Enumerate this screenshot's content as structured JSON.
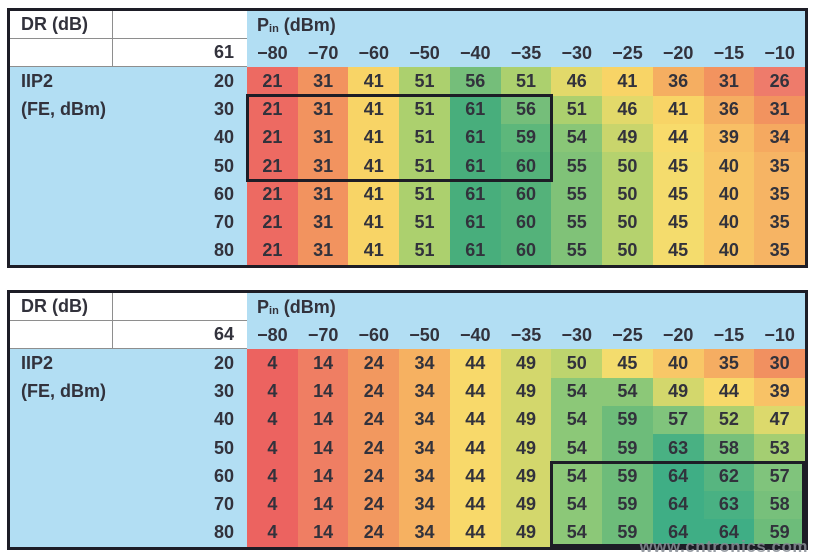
{
  "watermark": "www.cntronics.com",
  "colors": {
    "header_blue": "#B2DEF3",
    "table_border": "#1D1D26",
    "grid_line": "#8E8E8E",
    "text": "#32323C",
    "highlight_border": "#1D1D26",
    "watermark_text": "#878D95",
    "page_background": "#FFFFFF"
  },
  "chart_data": [
    {
      "type": "heatmap",
      "corner_label": "DR (dB)",
      "x_label_main": "P",
      "x_label_sub": "in",
      "x_label_unit": " (dBm)",
      "reference_value": "61",
      "y_label_line1": "IIP2",
      "y_label_line2": "(FE, dBm)",
      "x": [
        -80,
        -70,
        -60,
        -50,
        -40,
        -35,
        -30,
        -25,
        -20,
        -15,
        -10
      ],
      "y": [
        20,
        30,
        40,
        50,
        60,
        70,
        80
      ],
      "values": [
        [
          21,
          31,
          41,
          51,
          56,
          51,
          46,
          41,
          36,
          31,
          26
        ],
        [
          21,
          31,
          41,
          51,
          61,
          56,
          51,
          46,
          41,
          36,
          31
        ],
        [
          21,
          31,
          41,
          51,
          61,
          59,
          54,
          49,
          44,
          39,
          34
        ],
        [
          21,
          31,
          41,
          51,
          61,
          60,
          55,
          50,
          45,
          40,
          35
        ],
        [
          21,
          31,
          41,
          51,
          61,
          60,
          55,
          50,
          45,
          40,
          35
        ],
        [
          21,
          31,
          41,
          51,
          61,
          60,
          55,
          50,
          45,
          40,
          35
        ],
        [
          21,
          31,
          41,
          51,
          61,
          60,
          55,
          50,
          45,
          40,
          35
        ]
      ],
      "value_colors": {
        "21": "#ED6A62",
        "26": "#EE7B6B",
        "31": "#F2935F",
        "34": "#F5A960",
        "35": "#F6B464",
        "36": "#F5AE61",
        "39": "#F8BF65",
        "40": "#F8C566",
        "41": "#F8D466",
        "44": "#F8DB6B",
        "45": "#F4DC6D",
        "46": "#E2D96A",
        "49": "#C9D56C",
        "50": "#B5D26E",
        "51": "#ACD06E",
        "54": "#89C677",
        "55": "#80C278",
        "56": "#75BE7A",
        "59": "#5DB77B",
        "60": "#54B27A",
        "61": "#48AE7C"
      },
      "highlight_box": {
        "row_start": 1,
        "row_end": 3,
        "col_start": 0,
        "col_end": 5
      }
    },
    {
      "type": "heatmap",
      "corner_label": "DR (dB)",
      "x_label_main": "P",
      "x_label_sub": "in",
      "x_label_unit": " (dBm)",
      "reference_value": "64",
      "y_label_line1": "IIP2",
      "y_label_line2": "(FE, dBm)",
      "x": [
        -80,
        -70,
        -60,
        -50,
        -40,
        -35,
        -30,
        -25,
        -20,
        -15,
        -10
      ],
      "y": [
        20,
        30,
        40,
        50,
        60,
        70,
        80
      ],
      "values": [
        [
          4,
          14,
          24,
          34,
          44,
          49,
          50,
          45,
          40,
          35,
          30
        ],
        [
          4,
          14,
          24,
          34,
          44,
          49,
          54,
          54,
          49,
          44,
          39
        ],
        [
          4,
          14,
          24,
          34,
          44,
          49,
          54,
          59,
          57,
          52,
          47
        ],
        [
          4,
          14,
          24,
          34,
          44,
          49,
          54,
          59,
          63,
          58,
          53
        ],
        [
          4,
          14,
          24,
          34,
          44,
          49,
          54,
          59,
          64,
          62,
          57
        ],
        [
          4,
          14,
          24,
          34,
          44,
          49,
          54,
          59,
          64,
          63,
          58
        ],
        [
          4,
          14,
          24,
          34,
          44,
          49,
          54,
          59,
          64,
          64,
          59
        ]
      ],
      "value_colors": {
        "4": "#EC6360",
        "14": "#EF7E63",
        "24": "#F2985F",
        "30": "#F19060",
        "34": "#F6B161",
        "35": "#F5AD62",
        "39": "#F8C266",
        "40": "#F8C767",
        "44": "#F8D96A",
        "45": "#F3DC6D",
        "47": "#DCD96C",
        "49": "#D3D76C",
        "50": "#BDD46E",
        "52": "#AFD06F",
        "53": "#A4CE72",
        "54": "#8CC878",
        "57": "#80C47C",
        "58": "#77C07B",
        "59": "#6DBC7A",
        "62": "#57B580",
        "63": "#49B183",
        "64": "#3FAE85"
      },
      "highlight_box": {
        "row_start": 4,
        "row_end": 6,
        "col_start": 6,
        "col_end": 10
      }
    }
  ]
}
